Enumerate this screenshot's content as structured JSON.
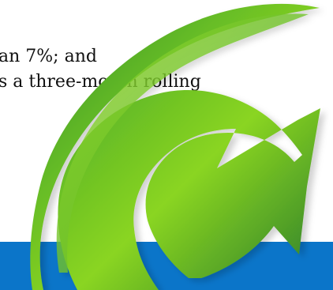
{
  "text": {
    "line1": "an 7%; and",
    "line2": "s a three-month rolling"
  },
  "colors": {
    "background": "#ffffff",
    "band": "#0b75c9",
    "arrow_light": "#86d61f",
    "arrow_mid": "#4aa52a",
    "arrow_dark": "#2b7c2d",
    "shadow": "#d9d9d9"
  },
  "graphic": {
    "arrow_name": "curved-green-arrow"
  }
}
